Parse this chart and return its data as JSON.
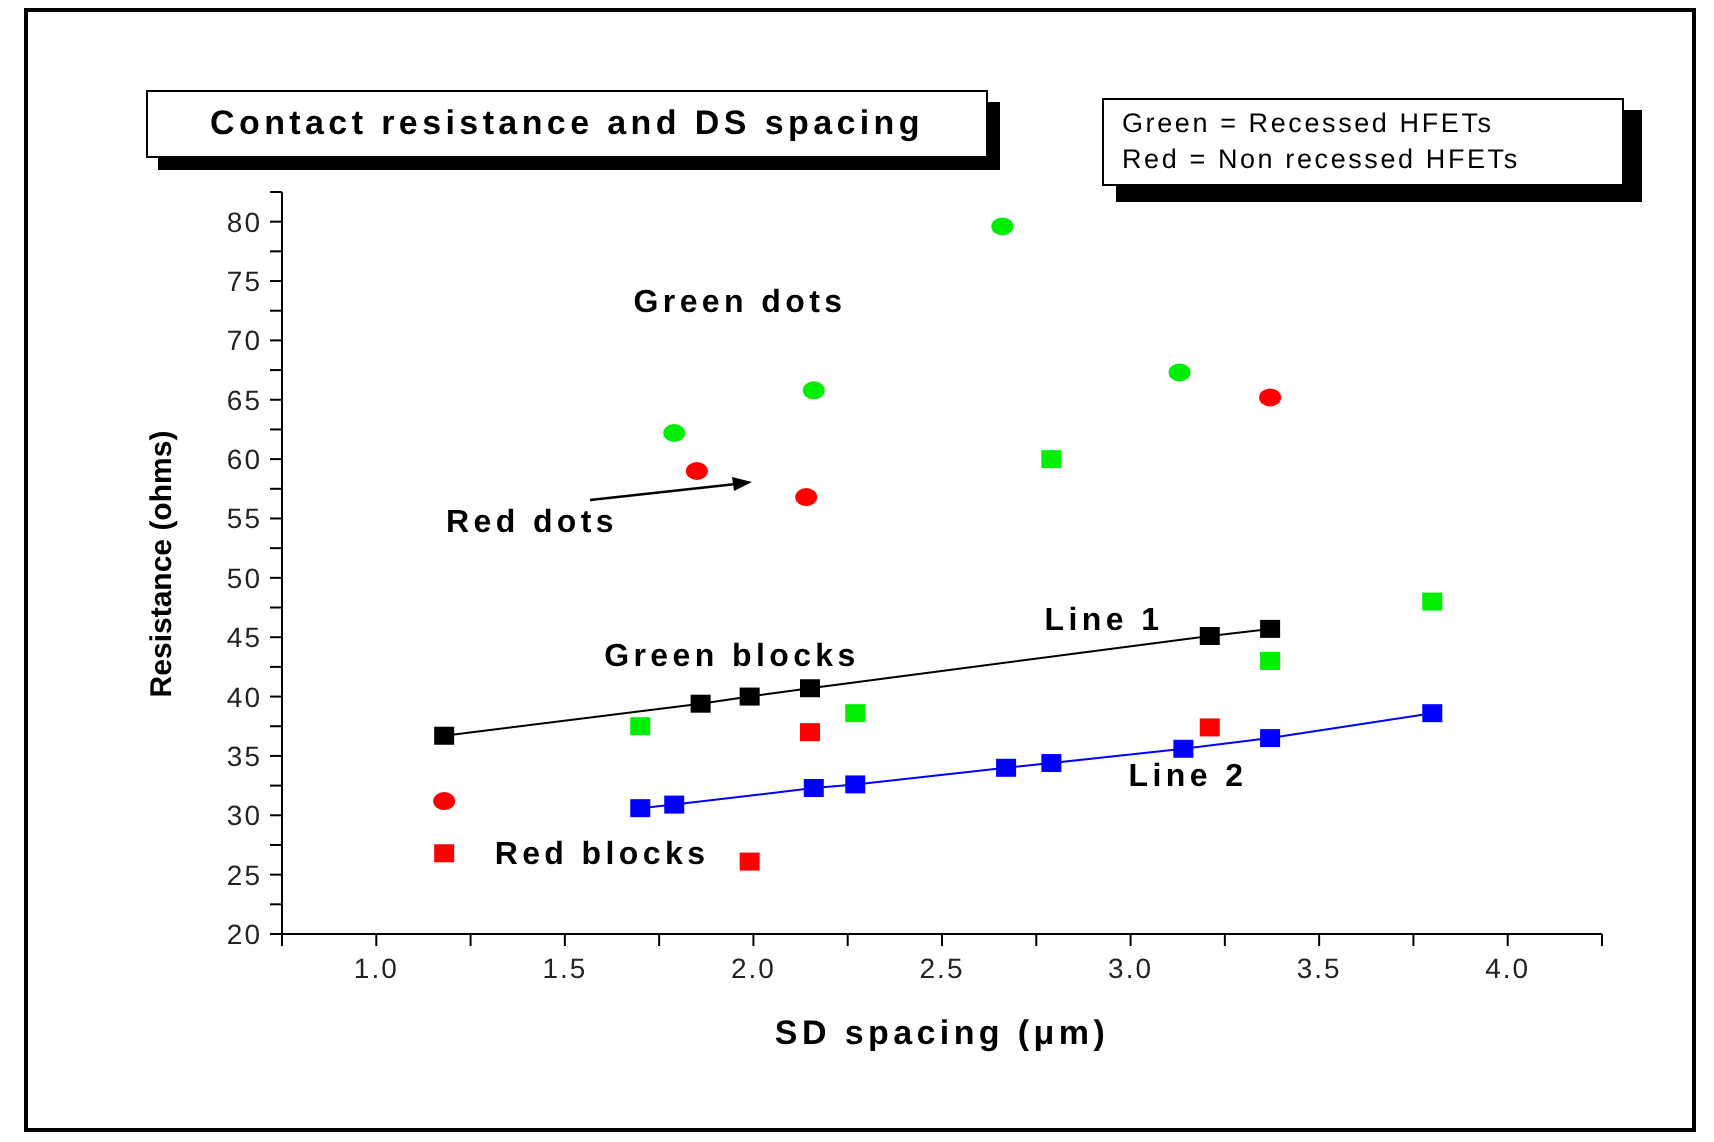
{
  "chart_data": {
    "type": "scatter",
    "title": "Contact resistance and DS spacing",
    "xlabel": "SD spacing (μm)",
    "ylabel": "Resistance (ohms)",
    "annotations": [
      "Green dots",
      "Red dots",
      "Green blocks",
      "Red blocks",
      "Line 1",
      "Line 2",
      "Green = Recessed HFETs",
      "Red = Non recessed HFETs"
    ],
    "xlim": [
      0.75,
      4.25
    ],
    "ylim": [
      20,
      82.5
    ],
    "xticks": [
      {
        "value": 0.75,
        "label": null
      },
      {
        "value": 1,
        "label": "1.0"
      },
      {
        "value": 1.25,
        "label": null
      },
      {
        "value": 1.5,
        "label": "1.5"
      },
      {
        "value": 1.75,
        "label": null
      },
      {
        "value": 2,
        "label": "2.0"
      },
      {
        "value": 2.25,
        "label": null
      },
      {
        "value": 2.5,
        "label": "2.5"
      },
      {
        "value": 2.75,
        "label": null
      },
      {
        "value": 3,
        "label": "3.0"
      },
      {
        "value": 3.25,
        "label": null
      },
      {
        "value": 3.5,
        "label": "3.5"
      },
      {
        "value": 3.75,
        "label": null
      },
      {
        "value": 4,
        "label": "4.0"
      },
      {
        "value": 4.25,
        "label": null
      }
    ],
    "yticks": [
      20,
      {
        "value": 22.5,
        "label": null
      },
      25,
      {
        "value": 27.5,
        "label": null
      },
      30,
      {
        "value": 32.5,
        "label": null
      },
      35,
      {
        "value": 37.5,
        "label": null
      },
      40,
      {
        "value": 42.5,
        "label": null
      },
      45,
      {
        "value": 47.5,
        "label": null
      },
      50,
      {
        "value": 52.5,
        "label": null
      },
      55,
      {
        "value": 57.5,
        "label": null
      },
      60,
      {
        "value": 62.5,
        "label": null
      },
      65,
      {
        "value": 67.5,
        "label": null
      },
      70,
      {
        "value": 72.5,
        "label": null
      },
      75,
      {
        "value": 77.5,
        "label": null
      },
      80,
      {
        "value": 82.5,
        "label": null
      }
    ],
    "grid": false,
    "legend": false,
    "series": [
      {
        "marker": "circle",
        "color": "#00ee00",
        "x": [
          1.79,
          2.16,
          2.66,
          3.13
        ],
        "values": [
          62.2,
          65.8,
          79.6,
          67.3
        ]
      },
      {
        "marker": "circle",
        "color": "#ff0000",
        "x": [
          1.18,
          1.85,
          2.14,
          3.37
        ],
        "values": [
          31.2,
          59.0,
          56.8,
          65.2
        ]
      },
      {
        "marker": "square",
        "color": "#00ee00",
        "x": [
          1.7,
          2.27,
          2.79,
          3.37,
          3.8
        ],
        "values": [
          37.5,
          38.6,
          60.0,
          43.0,
          48.0
        ]
      },
      {
        "marker": "square",
        "color": "#ff0000",
        "x": [
          1.18,
          1.99,
          2.15,
          3.21
        ],
        "values": [
          26.8,
          26.1,
          37.0,
          37.4
        ]
      },
      {
        "type": "line",
        "marker": "square",
        "color": "#000000",
        "x": [
          1.18,
          1.86,
          1.99,
          2.15,
          3.21,
          3.37
        ],
        "values": [
          36.7,
          39.4,
          40.0,
          40.7,
          45.1,
          45.7
        ]
      },
      {
        "type": "line",
        "marker": "square",
        "color": "#0000ff",
        "x": [
          1.7,
          1.79,
          2.16,
          2.27,
          2.67,
          2.79,
          3.14,
          3.37,
          3.8
        ],
        "values": [
          30.6,
          30.9,
          32.3,
          32.6,
          34.0,
          34.4,
          35.6,
          36.5,
          38.6
        ]
      }
    ]
  }
}
